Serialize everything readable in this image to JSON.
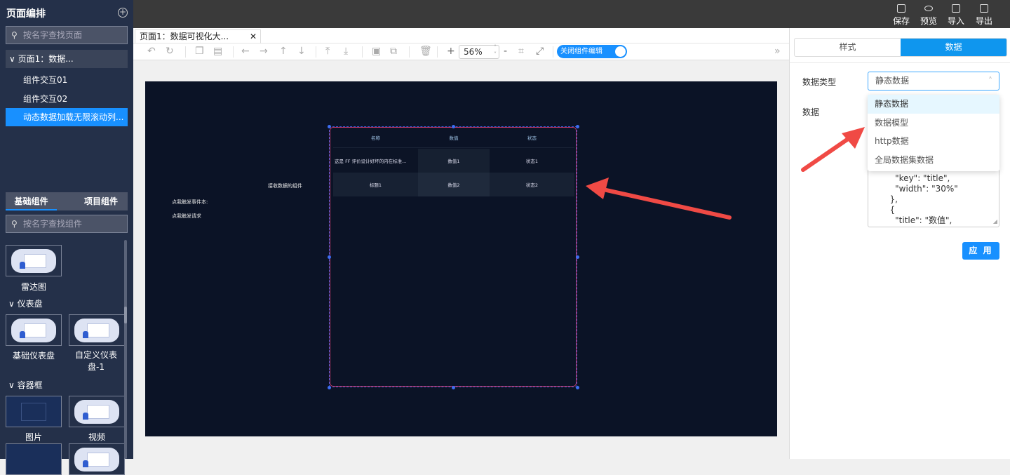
{
  "sidebar": {
    "title": "页面编排",
    "page_search_placeholder": "按名字查找页面",
    "page_group": "页面1：数据...",
    "pages": [
      {
        "label": "组件交互01"
      },
      {
        "label": "组件交互02"
      },
      {
        "label": "动态数据加载无限滚动列..."
      }
    ],
    "component_tabs": [
      "基础组件",
      "项目组件"
    ],
    "component_search_placeholder": "按名字查找组件",
    "components": {
      "radar": "雷达图",
      "gauge_category": "仪表盘",
      "gauge_basic": "基础仪表盘",
      "gauge_custom": "自定义仪表盘-1",
      "container_category": "容器框",
      "image": "图片",
      "video": "视频"
    }
  },
  "topbar": {
    "save": "保存",
    "preview": "预览",
    "import": "导入",
    "export": "导出"
  },
  "editor": {
    "tab_label": "页面1：数据可视化大...",
    "zoom": "56%",
    "toggle_label": "关闭组件编辑"
  },
  "canvas": {
    "receive_label": "接收数据的组件",
    "event_label": "点我触发事件本:",
    "request_label": "点我触发请求",
    "table": {
      "headers": [
        "名称",
        "数值",
        "状态"
      ],
      "rows": [
        [
          "这是 FF 评价设计好坏的内在标准...",
          "数值1",
          "状态1"
        ],
        [
          "标题1",
          "数值2",
          "状态2"
        ]
      ]
    }
  },
  "right_panel": {
    "tabs": [
      "样式",
      "数据"
    ],
    "data_type_label": "数据类型",
    "data_type_value": "静态数据",
    "data_label": "数据",
    "options": [
      "静态数据",
      "数据模型",
      "http数据",
      "全局数据集数据"
    ],
    "json_text": "          \"key\": \"title\",\n          \"width\": \"30%\"\n        },\n        {\n          \"title\": \"数值\",",
    "apply": "应 用"
  },
  "colors": {
    "accent": "#1890ff",
    "canvas_bg": "#0b1326",
    "sidebar_bg": "#243049",
    "arrow": "#f04a45"
  }
}
